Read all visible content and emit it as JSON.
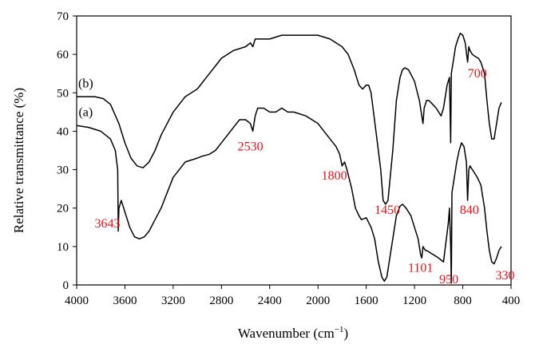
{
  "chart_data": {
    "type": "line",
    "title": "",
    "xlabel": "Wavenumber (cm",
    "xlabel_sup": "−1",
    "xlabel_end": ")",
    "ylabel": "Relative transmittance (%)",
    "xlim": [
      4000,
      400
    ],
    "ylim": [
      0,
      70
    ],
    "x_ticks": [
      4000,
      3600,
      3200,
      2800,
      2400,
      2000,
      1600,
      1200,
      800,
      400
    ],
    "y_ticks": [
      0,
      10,
      20,
      30,
      40,
      50,
      60,
      70
    ],
    "grid": false,
    "legend": "none",
    "annotation_color": "#e8101a",
    "series": [
      {
        "name": "(b)",
        "points": [
          [
            4000,
            49
          ],
          [
            3850,
            49
          ],
          [
            3780,
            48.5
          ],
          [
            3720,
            47
          ],
          [
            3650,
            42
          ],
          [
            3600,
            37
          ],
          [
            3550,
            33
          ],
          [
            3500,
            31
          ],
          [
            3450,
            30.5
          ],
          [
            3400,
            32
          ],
          [
            3350,
            35
          ],
          [
            3300,
            39
          ],
          [
            3200,
            45
          ],
          [
            3100,
            49
          ],
          [
            3000,
            51
          ],
          [
            2900,
            55
          ],
          [
            2850,
            57
          ],
          [
            2800,
            59
          ],
          [
            2700,
            61
          ],
          [
            2600,
            62
          ],
          [
            2560,
            63
          ],
          [
            2540,
            62
          ],
          [
            2520,
            64
          ],
          [
            2400,
            64
          ],
          [
            2300,
            65
          ],
          [
            2200,
            65
          ],
          [
            2100,
            65
          ],
          [
            2000,
            65
          ],
          [
            1900,
            64
          ],
          [
            1800,
            62
          ],
          [
            1750,
            60
          ],
          [
            1700,
            56
          ],
          [
            1660,
            52
          ],
          [
            1630,
            51
          ],
          [
            1600,
            52
          ],
          [
            1580,
            52
          ],
          [
            1560,
            50
          ],
          [
            1520,
            40
          ],
          [
            1480,
            30
          ],
          [
            1460,
            22
          ],
          [
            1440,
            21
          ],
          [
            1420,
            22
          ],
          [
            1380,
            35
          ],
          [
            1350,
            48
          ],
          [
            1320,
            54
          ],
          [
            1300,
            56
          ],
          [
            1280,
            56.5
          ],
          [
            1250,
            56
          ],
          [
            1200,
            53
          ],
          [
            1160,
            48
          ],
          [
            1140,
            44
          ],
          [
            1130,
            42
          ],
          [
            1120,
            46
          ],
          [
            1100,
            48
          ],
          [
            1080,
            48
          ],
          [
            1050,
            47
          ],
          [
            1020,
            46
          ],
          [
            1000,
            45
          ],
          [
            980,
            44
          ],
          [
            960,
            46
          ],
          [
            930,
            52
          ],
          [
            910,
            54
          ],
          [
            900,
            37
          ],
          [
            895,
            55
          ],
          [
            880,
            58
          ],
          [
            860,
            62
          ],
          [
            840,
            64
          ],
          [
            820,
            65.5
          ],
          [
            800,
            65
          ],
          [
            780,
            63
          ],
          [
            760,
            58
          ],
          [
            750,
            62
          ],
          [
            740,
            61
          ],
          [
            720,
            60
          ],
          [
            700,
            59.5
          ],
          [
            670,
            59
          ],
          [
            650,
            58
          ],
          [
            620,
            55
          ],
          [
            600,
            48
          ],
          [
            580,
            42
          ],
          [
            560,
            38
          ],
          [
            540,
            38
          ],
          [
            520,
            42
          ],
          [
            500,
            46
          ],
          [
            480,
            47.5
          ]
        ]
      },
      {
        "name": "(a)",
        "points": [
          [
            4000,
            41.5
          ],
          [
            3900,
            41
          ],
          [
            3800,
            40
          ],
          [
            3720,
            38
          ],
          [
            3680,
            35
          ],
          [
            3660,
            30
          ],
          [
            3655,
            14
          ],
          [
            3650,
            20
          ],
          [
            3630,
            22
          ],
          [
            3600,
            19
          ],
          [
            3560,
            15
          ],
          [
            3520,
            12.5
          ],
          [
            3480,
            12
          ],
          [
            3440,
            12.5
          ],
          [
            3400,
            14
          ],
          [
            3350,
            17
          ],
          [
            3300,
            20
          ],
          [
            3250,
            24
          ],
          [
            3200,
            28
          ],
          [
            3100,
            32
          ],
          [
            3000,
            33
          ],
          [
            2960,
            33.5
          ],
          [
            2900,
            34
          ],
          [
            2850,
            35
          ],
          [
            2800,
            37
          ],
          [
            2700,
            41
          ],
          [
            2650,
            43
          ],
          [
            2600,
            43
          ],
          [
            2560,
            42
          ],
          [
            2540,
            40
          ],
          [
            2520,
            44
          ],
          [
            2500,
            46
          ],
          [
            2450,
            46
          ],
          [
            2400,
            45
          ],
          [
            2350,
            45
          ],
          [
            2300,
            46
          ],
          [
            2250,
            45
          ],
          [
            2200,
            45
          ],
          [
            2100,
            44
          ],
          [
            2000,
            42
          ],
          [
            1900,
            38
          ],
          [
            1850,
            36
          ],
          [
            1820,
            34
          ],
          [
            1800,
            31
          ],
          [
            1780,
            32
          ],
          [
            1760,
            30
          ],
          [
            1720,
            25
          ],
          [
            1690,
            20
          ],
          [
            1660,
            18
          ],
          [
            1640,
            17
          ],
          [
            1600,
            17.5
          ],
          [
            1560,
            15
          ],
          [
            1530,
            12
          ],
          [
            1500,
            6
          ],
          [
            1470,
            2
          ],
          [
            1450,
            1
          ],
          [
            1430,
            2
          ],
          [
            1400,
            8
          ],
          [
            1350,
            18
          ],
          [
            1320,
            20.5
          ],
          [
            1300,
            21
          ],
          [
            1270,
            20
          ],
          [
            1230,
            18
          ],
          [
            1200,
            15
          ],
          [
            1170,
            12
          ],
          [
            1150,
            8
          ],
          [
            1140,
            7
          ],
          [
            1130,
            10
          ],
          [
            1110,
            9
          ],
          [
            1100,
            9
          ],
          [
            1050,
            8
          ],
          [
            1000,
            7
          ],
          [
            960,
            6
          ],
          [
            940,
            11
          ],
          [
            920,
            16
          ],
          [
            910,
            20
          ],
          [
            900,
            10
          ],
          [
            895,
            0.5
          ],
          [
            890,
            24
          ],
          [
            870,
            28
          ],
          [
            850,
            32
          ],
          [
            830,
            35
          ],
          [
            810,
            37
          ],
          [
            790,
            36
          ],
          [
            770,
            32
          ],
          [
            760,
            22
          ],
          [
            750,
            30
          ],
          [
            740,
            31
          ],
          [
            720,
            30
          ],
          [
            700,
            29
          ],
          [
            680,
            28
          ],
          [
            650,
            26
          ],
          [
            620,
            20
          ],
          [
            600,
            14
          ],
          [
            580,
            9
          ],
          [
            560,
            6
          ],
          [
            540,
            5.5
          ],
          [
            520,
            7
          ],
          [
            500,
            9
          ],
          [
            480,
            10
          ]
        ]
      }
    ],
    "curve_labels": [
      {
        "text": "(b)",
        "x": 3925,
        "y": 52.5
      },
      {
        "text": "(a)",
        "x": 3925,
        "y": 45
      }
    ],
    "annotations": [
      {
        "text": "3643",
        "x": 3745,
        "y": 16
      },
      {
        "text": "2530",
        "x": 2560,
        "y": 36
      },
      {
        "text": "1800",
        "x": 1865,
        "y": 28.5
      },
      {
        "text": "1450",
        "x": 1425,
        "y": 19.5
      },
      {
        "text": "1101",
        "x": 1150,
        "y": 4.5
      },
      {
        "text": "950",
        "x": 915,
        "y": 1.5
      },
      {
        "text": "840",
        "x": 745,
        "y": 19.5
      },
      {
        "text": "700",
        "x": 680,
        "y": 55
      },
      {
        "text": "330",
        "x": 450,
        "y": 2.5
      }
    ]
  }
}
